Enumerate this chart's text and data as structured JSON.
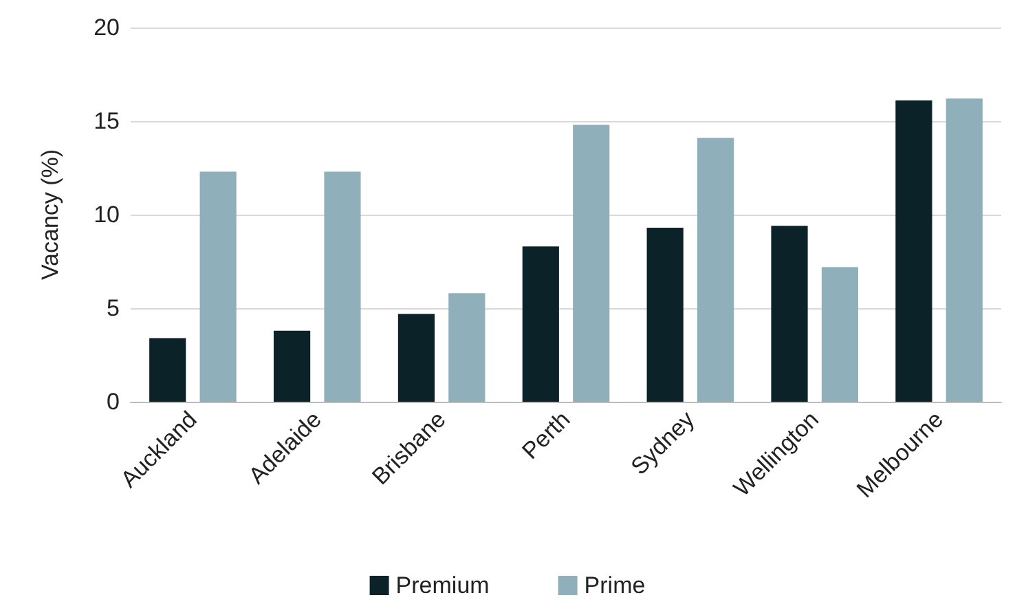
{
  "chart_data": {
    "type": "bar",
    "ylabel": "Vacancy (%)",
    "categories": [
      "Auckland",
      "Adelaide",
      "Brisbane",
      "Perth",
      "Sydney",
      "Wellington",
      "Melbourne"
    ],
    "series": [
      {
        "name": "Premium",
        "color": "#0b2228",
        "values": [
          3.4,
          3.8,
          4.7,
          8.3,
          9.3,
          9.4,
          16.1
        ]
      },
      {
        "name": "Prime",
        "color": "#8fb0ba",
        "values": [
          12.3,
          12.3,
          5.8,
          14.8,
          14.1,
          7.2,
          16.2
        ]
      }
    ],
    "ylim": [
      0,
      20
    ],
    "yticks": [
      0,
      5,
      10,
      15,
      20
    ],
    "grid": "y",
    "legend": "bottom"
  }
}
